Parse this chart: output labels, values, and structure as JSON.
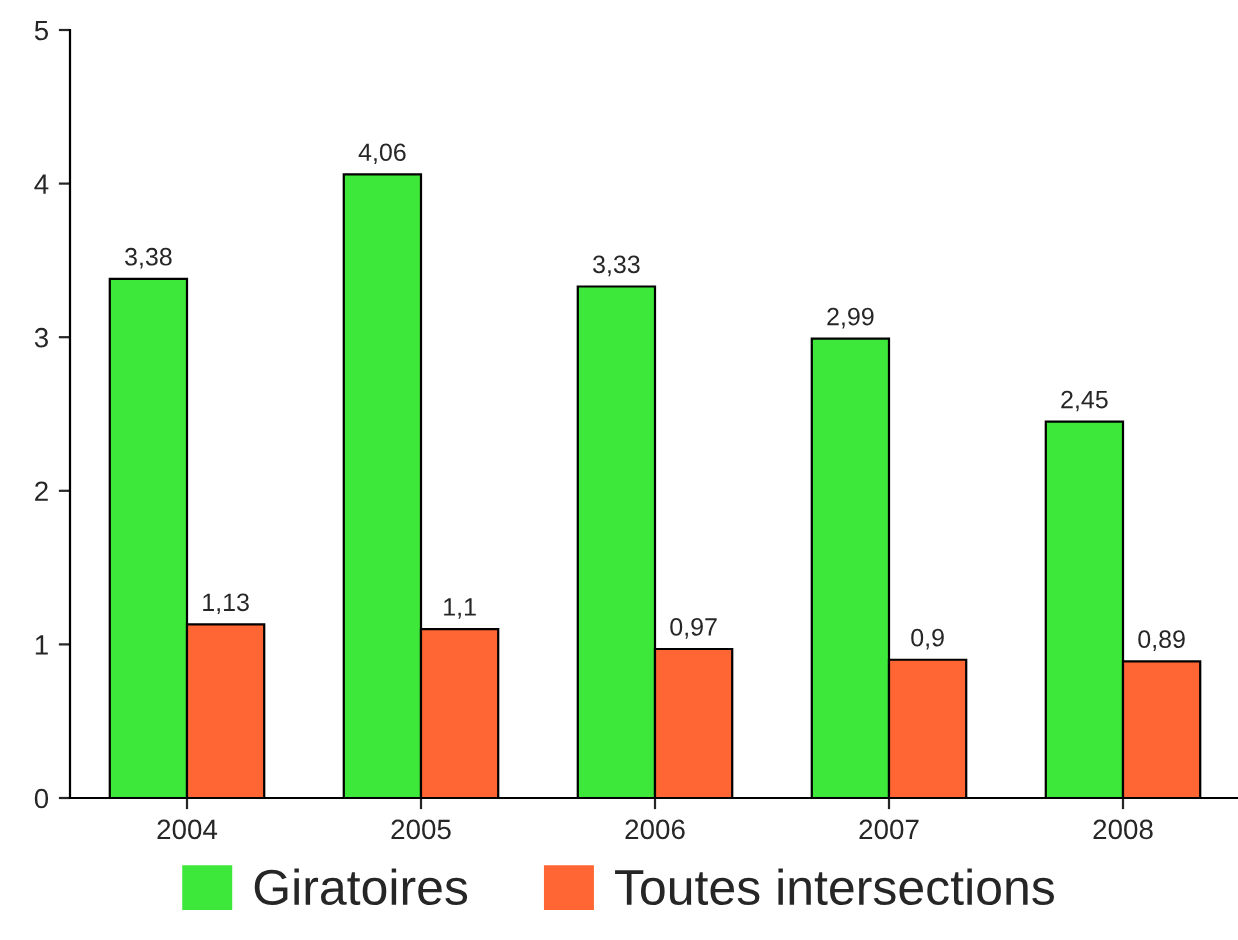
{
  "chart_data": {
    "type": "bar",
    "categories": [
      "2004",
      "2005",
      "2006",
      "2007",
      "2008"
    ],
    "series": [
      {
        "name": "Giratoires",
        "color": "#3ee83a",
        "values": [
          3.38,
          4.06,
          3.33,
          2.99,
          2.45
        ],
        "value_labels": [
          "3,38",
          "4,06",
          "3,33",
          "2,99",
          "2,45"
        ]
      },
      {
        "name": "Toutes intersections",
        "color": "#ff6633",
        "values": [
          1.13,
          1.1,
          0.97,
          0.9,
          0.89
        ],
        "value_labels": [
          "1,13",
          "1,1",
          "0,97",
          "0,9",
          "0,89"
        ]
      }
    ],
    "ylim": [
      0,
      5
    ],
    "yticks": [
      0,
      1,
      2,
      3,
      4,
      5
    ],
    "grid": false,
    "legend": "bottom"
  }
}
